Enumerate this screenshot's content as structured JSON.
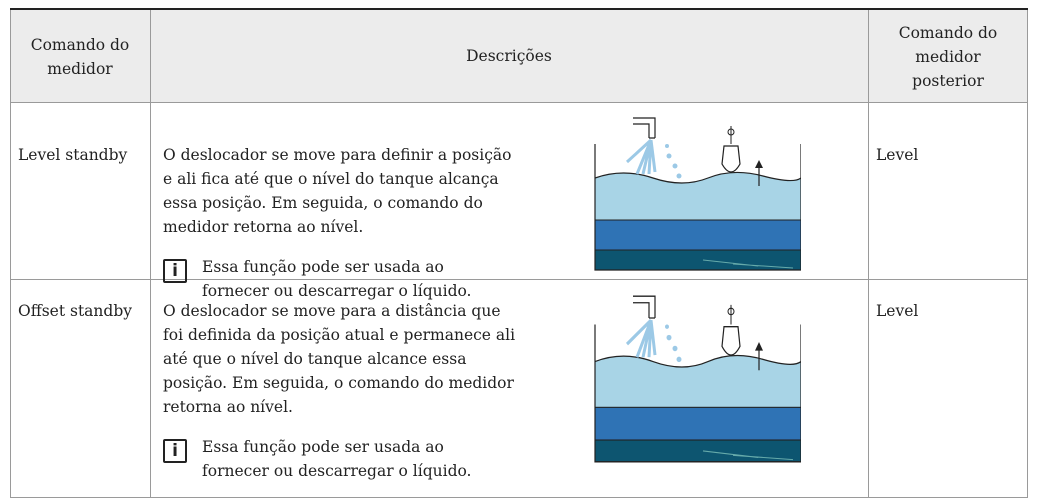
{
  "table": {
    "header": [
      "Comando do medidor",
      "Descrições",
      "Comando do medidor posterior"
    ],
    "rows": [
      {
        "command": "Level standby",
        "description": [
          "O deslocador se move para definir a posição",
          "e ali fica até que o nível do tanque alcança",
          "essa posição. Em seguida, o comando do",
          "medidor retorna ao nível."
        ],
        "note": [
          "Essa função pode ser usada ao",
          "fornecer ou descarregar o líquido."
        ],
        "next": "Level"
      },
      {
        "command": "Offset standby",
        "description": [
          "O deslocador se move para a distância que",
          "foi definida da posição atual e permanece ali",
          "até que o nível do tanque alcance essa",
          "posição. Em seguida, o comando do medidor",
          "retorna ao nível."
        ],
        "note": [
          "Essa função pode ser usada ao",
          "fornecer ou descarregar o líquido."
        ],
        "next": "Level"
      }
    ]
  }
}
